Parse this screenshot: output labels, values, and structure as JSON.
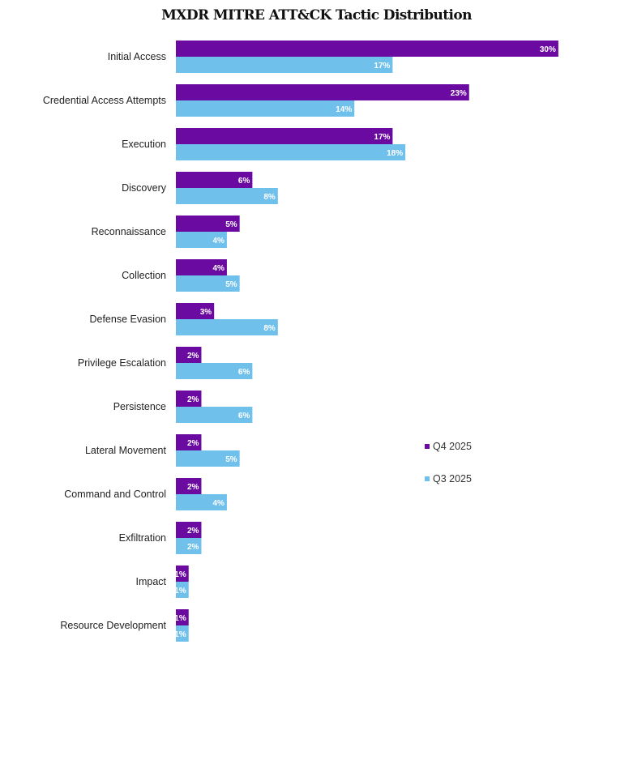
{
  "chart_data": {
    "type": "bar",
    "orientation": "horizontal",
    "title": "MXDR MITRE ATT&CK Tactic Distribution",
    "xlabel": "",
    "ylabel": "",
    "value_suffix": "%",
    "categories": [
      "Initial Access",
      "Credential Access Attempts",
      "Execution",
      "Discovery",
      "Reconnaissance",
      "Collection",
      "Defense Evasion",
      "Privilege Escalation",
      "Persistence",
      "Lateral Movement",
      "Command and Control",
      "Exfiltration",
      "Impact",
      "Resource Development"
    ],
    "series": [
      {
        "name": "Q4 2025",
        "color": "#6a0aa0",
        "values": [
          30,
          23,
          17,
          6,
          5,
          4,
          3,
          2,
          2,
          2,
          2,
          2,
          1,
          1
        ]
      },
      {
        "name": "Q3 2025",
        "color": "#70c0ec",
        "values": [
          17,
          14,
          18,
          8,
          4,
          5,
          8,
          6,
          6,
          5,
          4,
          2,
          1,
          1
        ]
      }
    ],
    "xlim": [
      0,
      30
    ],
    "grid": false,
    "legend_position": "right"
  }
}
